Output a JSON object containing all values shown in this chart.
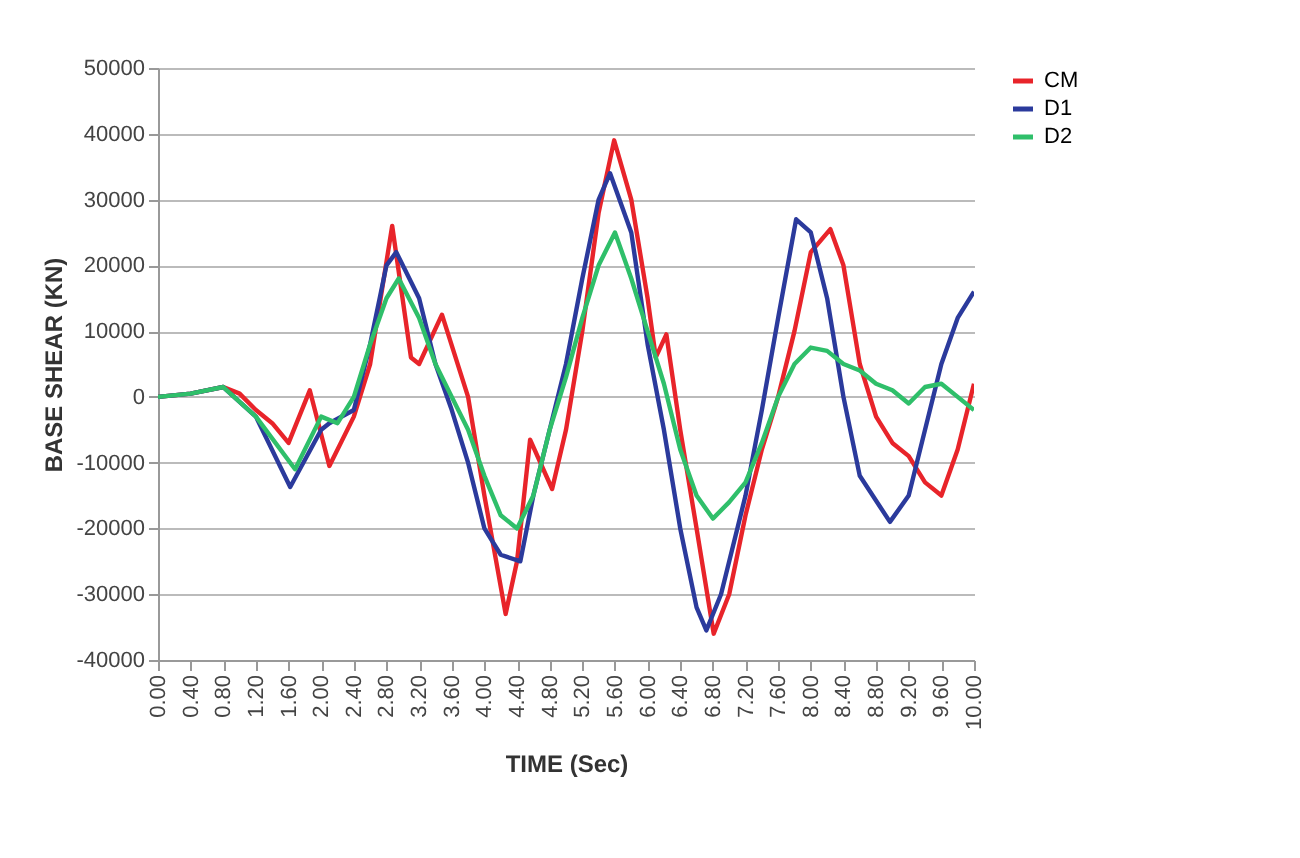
{
  "chart_data": {
    "type": "line",
    "xlabel": "TIME (Sec)",
    "ylabel": "BASE SHEAR (KN)",
    "xlim": [
      0,
      10
    ],
    "ylim": [
      -40000,
      50000
    ],
    "xticks": [
      {
        "value": 0,
        "label": "0.00"
      },
      {
        "value": 0.4,
        "label": "0.40"
      },
      {
        "value": 0.8,
        "label": "0.80"
      },
      {
        "value": 1.2,
        "label": "1.20"
      },
      {
        "value": 1.6,
        "label": "1.60"
      },
      {
        "value": 2,
        "label": "2.00"
      },
      {
        "value": 2.4,
        "label": "2.40"
      },
      {
        "value": 2.8,
        "label": "2.80"
      },
      {
        "value": 3.2,
        "label": "3.20"
      },
      {
        "value": 3.6,
        "label": "3.60"
      },
      {
        "value": 4,
        "label": "4.00"
      },
      {
        "value": 4.4,
        "label": "4.40"
      },
      {
        "value": 4.8,
        "label": "4.80"
      },
      {
        "value": 5.2,
        "label": "5.20"
      },
      {
        "value": 5.6,
        "label": "5.60"
      },
      {
        "value": 6,
        "label": "6.00"
      },
      {
        "value": 6.4,
        "label": "6.40"
      },
      {
        "value": 6.8,
        "label": "6.80"
      },
      {
        "value": 7.2,
        "label": "7.20"
      },
      {
        "value": 7.6,
        "label": "7.60"
      },
      {
        "value": 8,
        "label": "8.00"
      },
      {
        "value": 8.4,
        "label": "8.40"
      },
      {
        "value": 8.8,
        "label": "8.80"
      },
      {
        "value": 9.2,
        "label": "9.20"
      },
      {
        "value": 9.6,
        "label": "9.60"
      },
      {
        "value": 10,
        "label": "10.00"
      }
    ],
    "yticks": [
      -40000,
      -30000,
      -20000,
      -10000,
      0,
      10000,
      20000,
      30000,
      40000,
      50000
    ],
    "grid": "y",
    "legend": "right",
    "marker": "none",
    "line_style": "solid",
    "series": [
      {
        "name": "CM",
        "color": "#e8242a",
        "x": [
          0,
          0.4,
          0.8,
          1.0,
          1.2,
          1.4,
          1.6,
          1.86,
          2.1,
          2.4,
          2.6,
          2.87,
          3.1,
          3.2,
          3.48,
          3.8,
          4.0,
          4.26,
          4.4,
          4.56,
          4.83,
          5.0,
          5.2,
          5.4,
          5.59,
          5.8,
          6.0,
          6.1,
          6.23,
          6.4,
          6.6,
          6.81,
          7.0,
          7.2,
          7.4,
          7.6,
          7.8,
          8.0,
          8.24,
          8.4,
          8.6,
          8.8,
          9.0,
          9.2,
          9.4,
          9.6,
          9.8,
          10.0
        ],
        "values": [
          0,
          500,
          1500,
          500,
          -2000,
          -4000,
          -7000,
          1000,
          -10500,
          -3000,
          5000,
          26000,
          6000,
          5000,
          12500,
          0,
          -15000,
          -33000,
          -25000,
          -6500,
          -14000,
          -5000,
          10000,
          28000,
          39000,
          30000,
          15000,
          6000,
          9500,
          -5000,
          -20000,
          -36000,
          -30000,
          -18000,
          -8000,
          0,
          10000,
          22000,
          25500,
          20000,
          5000,
          -3000,
          -7000,
          -9000,
          -13000,
          -15000,
          -8000,
          2000
        ]
      },
      {
        "name": "D1",
        "color": "#2b3a9c",
        "x": [
          0,
          0.4,
          0.8,
          1.2,
          1.62,
          2.0,
          2.1,
          2.4,
          2.6,
          2.8,
          2.92,
          3.2,
          3.4,
          3.6,
          3.8,
          4.0,
          4.2,
          4.44,
          4.6,
          4.8,
          5.0,
          5.2,
          5.4,
          5.54,
          5.8,
          6.0,
          6.2,
          6.4,
          6.6,
          6.72,
          6.9,
          7.2,
          7.4,
          7.6,
          7.82,
          8.0,
          8.2,
          8.4,
          8.6,
          8.97,
          9.2,
          9.4,
          9.6,
          9.8,
          10.0
        ],
        "values": [
          0,
          500,
          1500,
          -3000,
          -13700,
          -5000,
          -4000,
          -2000,
          8000,
          20000,
          22000,
          15000,
          5000,
          -2000,
          -10000,
          -20000,
          -24000,
          -25000,
          -15000,
          -5000,
          5000,
          18000,
          30000,
          34000,
          25000,
          8000,
          -5000,
          -20000,
          -32000,
          -35500,
          -30000,
          -15000,
          -2000,
          12000,
          27000,
          25000,
          15000,
          0,
          -12000,
          -19000,
          -15000,
          -5000,
          5000,
          12000,
          16000
        ]
      },
      {
        "name": "D2",
        "color": "#2fbf6a",
        "x": [
          0,
          0.4,
          0.8,
          1.2,
          1.68,
          2.0,
          2.2,
          2.4,
          2.6,
          2.8,
          2.95,
          3.2,
          3.4,
          3.6,
          3.8,
          4.0,
          4.2,
          4.4,
          4.6,
          4.8,
          5.0,
          5.2,
          5.4,
          5.6,
          5.8,
          6.0,
          6.2,
          6.4,
          6.6,
          6.8,
          7.0,
          7.2,
          7.4,
          7.6,
          7.8,
          8.0,
          8.2,
          8.4,
          8.6,
          8.8,
          9.0,
          9.2,
          9.4,
          9.6,
          9.8,
          10.0
        ],
        "values": [
          0,
          500,
          1500,
          -3000,
          -11000,
          -3000,
          -4000,
          0,
          8000,
          15000,
          18000,
          12000,
          5000,
          0,
          -5000,
          -12000,
          -18000,
          -20000,
          -15000,
          -5000,
          3000,
          12000,
          20000,
          25000,
          18000,
          10000,
          2000,
          -8000,
          -15000,
          -18500,
          -16000,
          -13000,
          -7000,
          0,
          5000,
          7500,
          7000,
          5000,
          4000,
          2000,
          1000,
          -1000,
          1500,
          2000,
          0,
          -2000
        ]
      }
    ]
  }
}
